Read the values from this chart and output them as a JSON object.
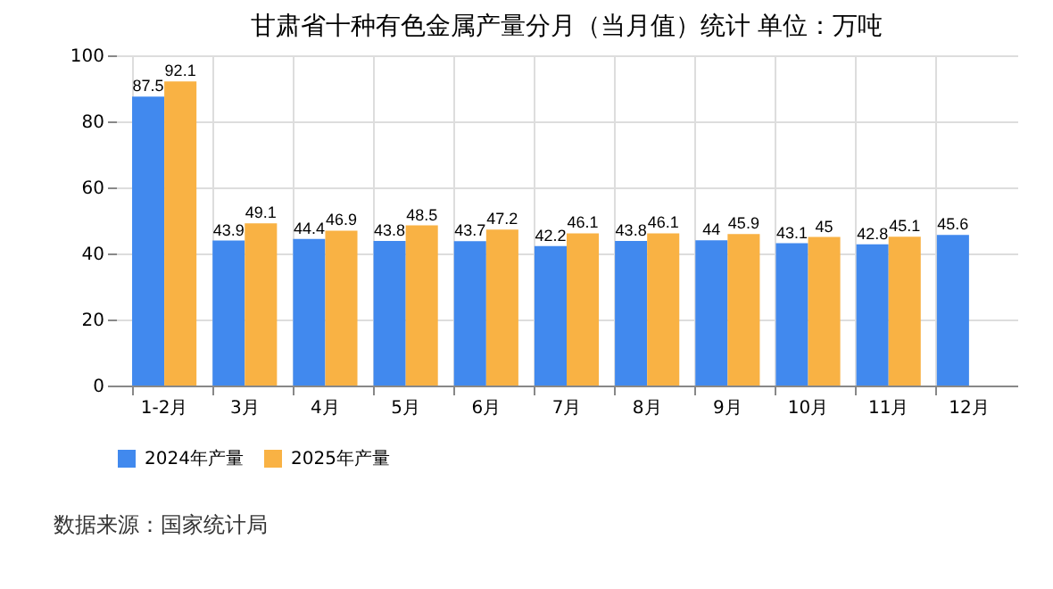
{
  "chart_data": {
    "type": "bar",
    "title": "甘肃省十种有色金属产量分月（当月值）统计 单位：万吨",
    "categories": [
      "1-2月",
      "3月",
      "4月",
      "5月",
      "6月",
      "7月",
      "8月",
      "9月",
      "10月",
      "11月",
      "12月"
    ],
    "series": [
      {
        "name": "2024年产量",
        "color": "#4189ee",
        "values": [
          87.5,
          43.9,
          44.4,
          43.8,
          43.7,
          42.2,
          43.8,
          44,
          43.1,
          42.8,
          45.6
        ]
      },
      {
        "name": "2025年产量",
        "color": "#f9b244",
        "values": [
          92.1,
          49.1,
          46.9,
          48.5,
          47.2,
          46.1,
          46.1,
          45.9,
          45,
          45.1,
          null
        ]
      }
    ],
    "ylim": [
      0,
      100
    ],
    "yticks": [
      0,
      20,
      40,
      60,
      80,
      100
    ],
    "grid": true,
    "legend": "bottom",
    "data_labels": true,
    "annotations": [
      "数据来源：国家统计局"
    ]
  }
}
